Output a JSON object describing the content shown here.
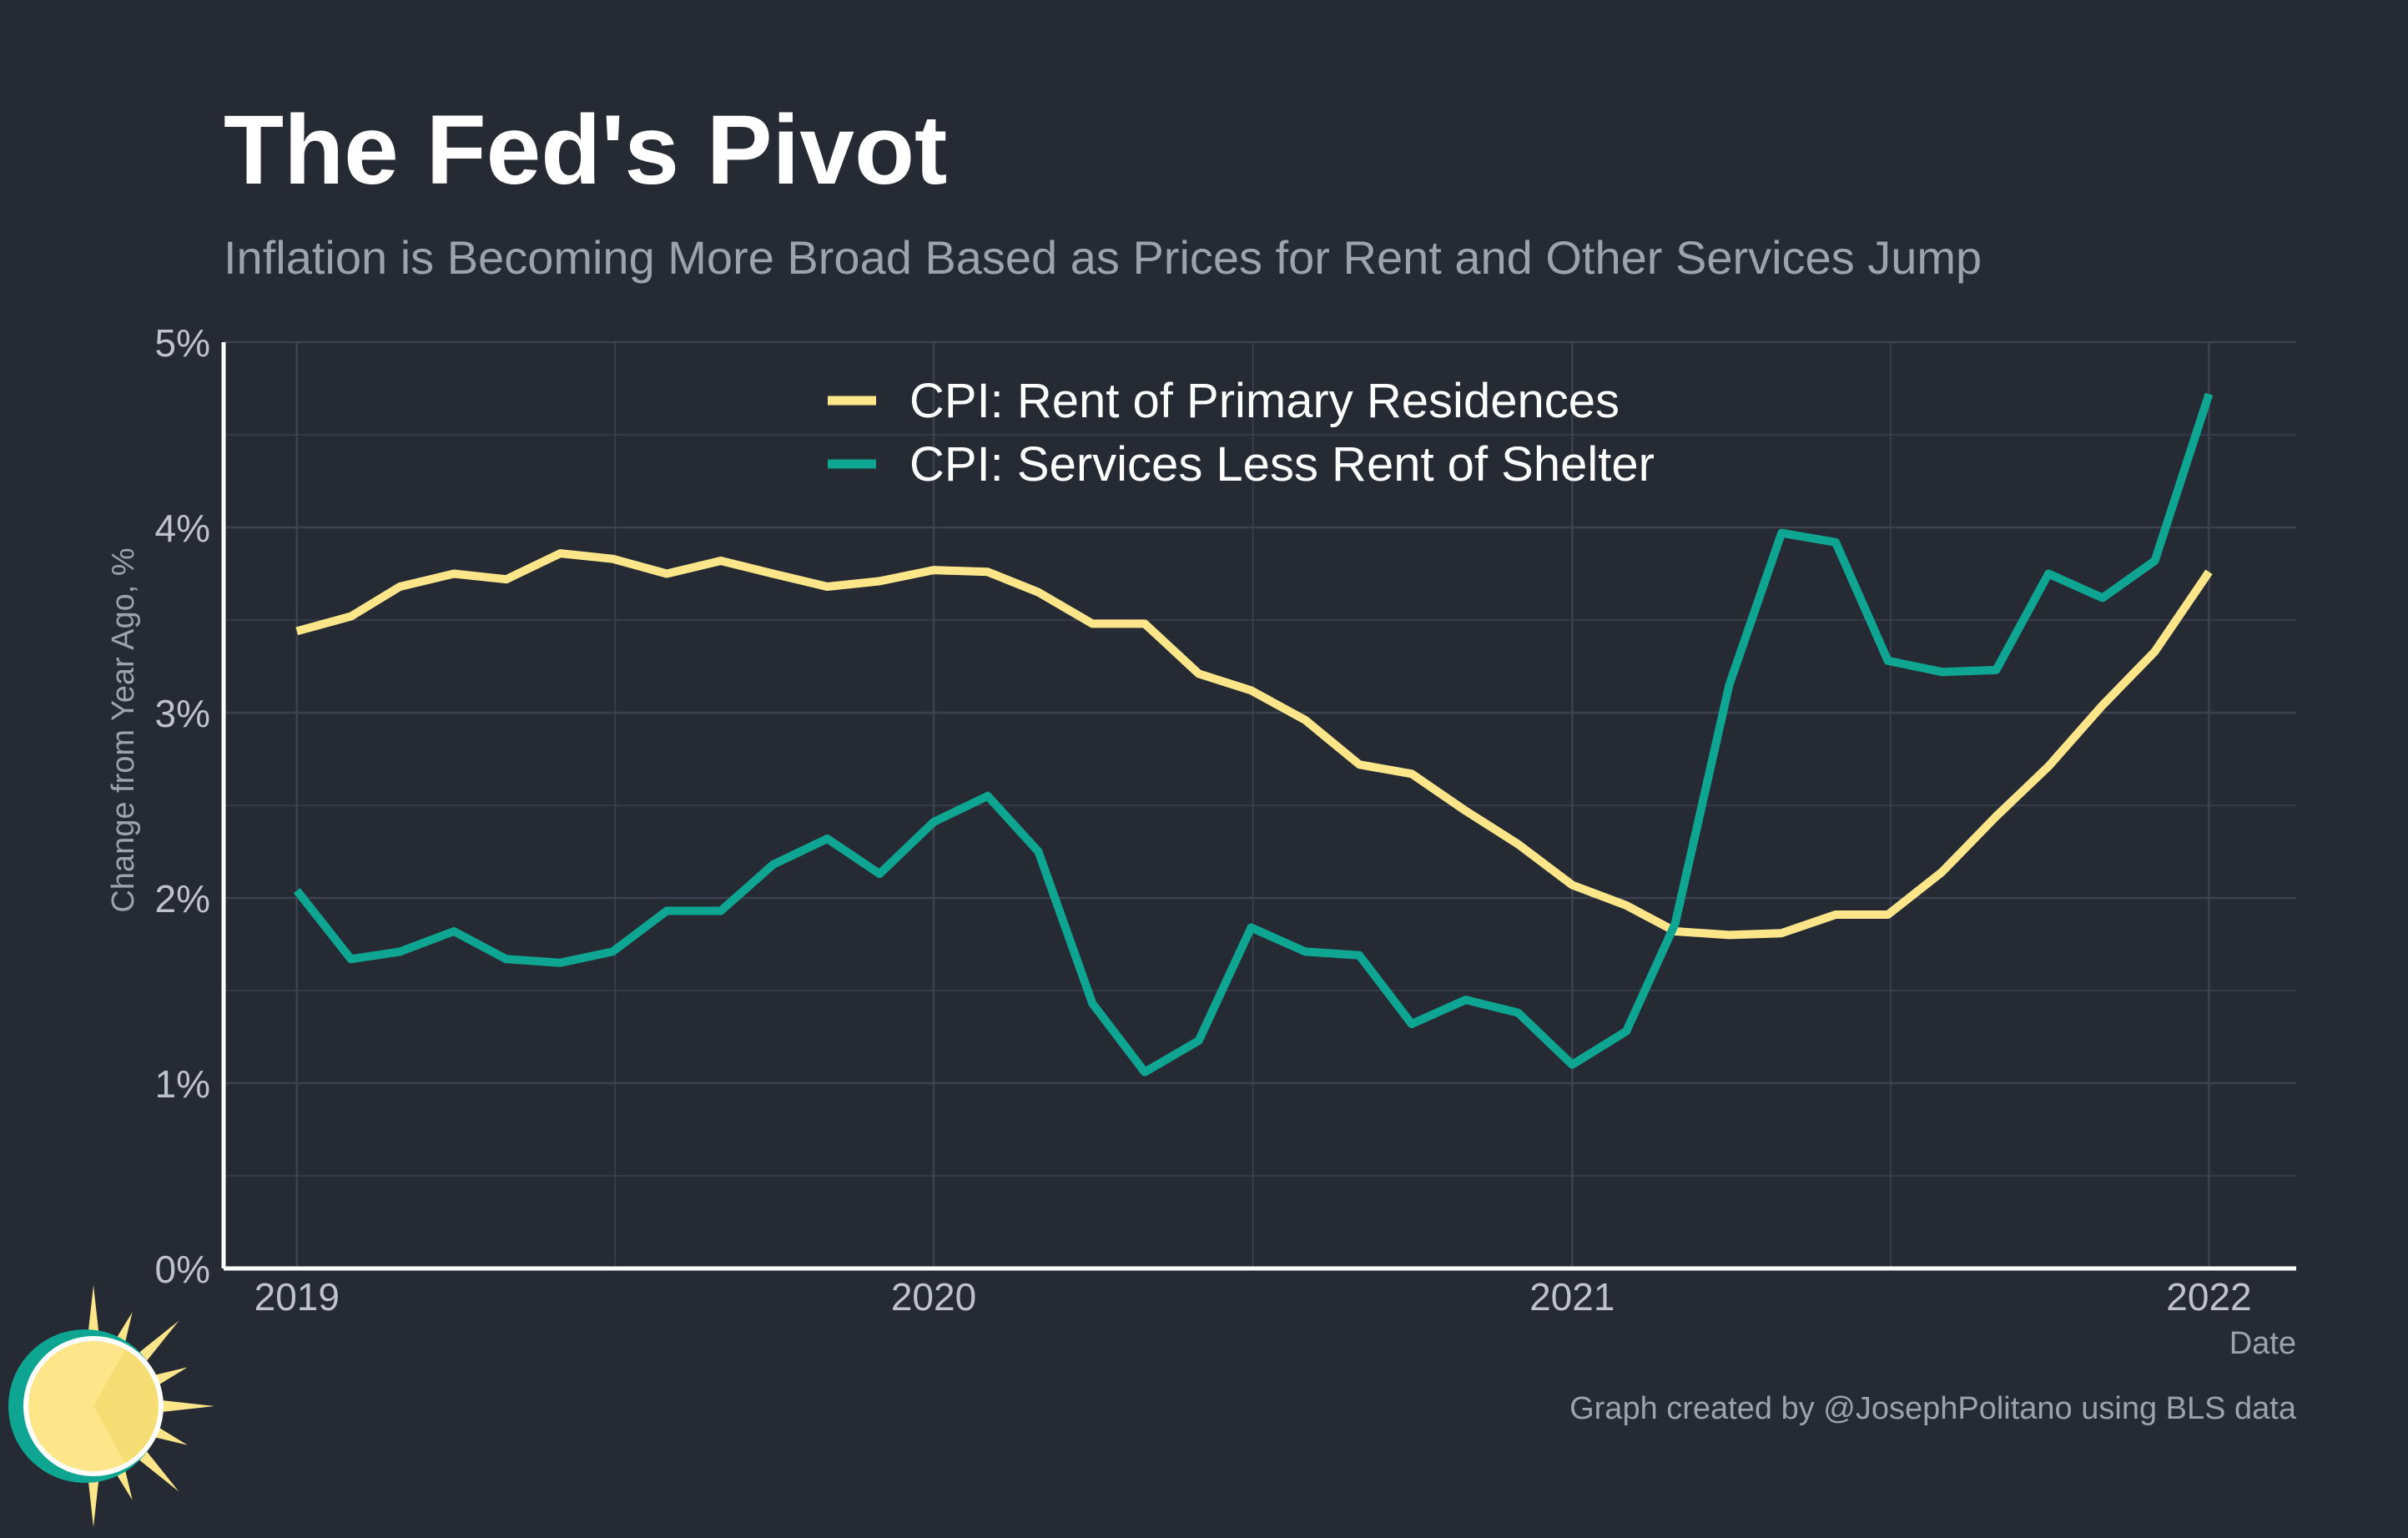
{
  "chart_data": {
    "type": "line",
    "title": "The Fed's Pivot",
    "subtitle": "Inflation is Becoming More Broad Based as Prices for Rent and Other Services Jump",
    "xlabel": "Date",
    "ylabel": "Change from Year Ago, %",
    "caption": "Graph created by @JosephPolitano using BLS data",
    "xlim": [
      "2018-11-20",
      "2022-02-20"
    ],
    "ylim": [
      0,
      5
    ],
    "x_ticks": [
      {
        "value": "2019-01-01",
        "label": "2019"
      },
      {
        "value": "2020-01-01",
        "label": "2020"
      },
      {
        "value": "2021-01-01",
        "label": "2021"
      },
      {
        "value": "2022-01-01",
        "label": "2022"
      }
    ],
    "y_ticks": [
      {
        "value": 0,
        "label": "0%"
      },
      {
        "value": 1,
        "label": "1%"
      },
      {
        "value": 2,
        "label": "2%"
      },
      {
        "value": 3,
        "label": "3%"
      },
      {
        "value": 4,
        "label": "4%"
      },
      {
        "value": 5,
        "label": "5%"
      }
    ],
    "grid": true,
    "legend_position": "top-center",
    "x": [
      "2019-01-01",
      "2019-02-01",
      "2019-03-01",
      "2019-04-01",
      "2019-05-01",
      "2019-06-01",
      "2019-07-01",
      "2019-08-01",
      "2019-09-01",
      "2019-10-01",
      "2019-11-01",
      "2019-12-01",
      "2020-01-01",
      "2020-02-01",
      "2020-03-01",
      "2020-04-01",
      "2020-05-01",
      "2020-06-01",
      "2020-07-01",
      "2020-08-01",
      "2020-09-01",
      "2020-10-01",
      "2020-11-01",
      "2020-12-01",
      "2021-01-01",
      "2021-02-01",
      "2021-03-01",
      "2021-04-01",
      "2021-05-01",
      "2021-06-01",
      "2021-07-01",
      "2021-08-01",
      "2021-09-01",
      "2021-10-01",
      "2021-11-01",
      "2021-12-01",
      "2022-01-01"
    ],
    "series": [
      {
        "name": "CPI: Rent of Primary Residences",
        "color": "#fde68a",
        "values": [
          3.44,
          3.52,
          3.68,
          3.75,
          3.72,
          3.86,
          3.83,
          3.75,
          3.82,
          3.75,
          3.68,
          3.71,
          3.77,
          3.76,
          3.65,
          3.48,
          3.48,
          3.21,
          3.12,
          2.96,
          2.72,
          2.67,
          2.47,
          2.29,
          2.07,
          1.96,
          1.82,
          1.8,
          1.81,
          1.91,
          1.91,
          2.14,
          2.44,
          2.71,
          3.04,
          3.33,
          3.76
        ]
      },
      {
        "name": "CPI: Services Less Rent of Shelter",
        "color": "#0ea593",
        "values": [
          2.04,
          1.67,
          1.71,
          1.82,
          1.67,
          1.65,
          1.71,
          1.93,
          1.93,
          2.18,
          2.32,
          2.13,
          2.41,
          2.55,
          2.25,
          1.43,
          1.06,
          1.23,
          1.84,
          1.71,
          1.69,
          1.32,
          1.45,
          1.38,
          1.1,
          1.28,
          1.86,
          3.15,
          3.97,
          3.92,
          3.28,
          3.22,
          3.23,
          3.75,
          3.62,
          3.82,
          4.72
        ]
      }
    ]
  },
  "colors": {
    "background": "#252a33",
    "grid": "#3d434e",
    "axis": "#ffffff",
    "title": "#ffffff",
    "muted_text": "#9ea3aa",
    "tick_text": "#bfc3c9"
  },
  "logo": {
    "icon": "sun-logo-icon"
  }
}
